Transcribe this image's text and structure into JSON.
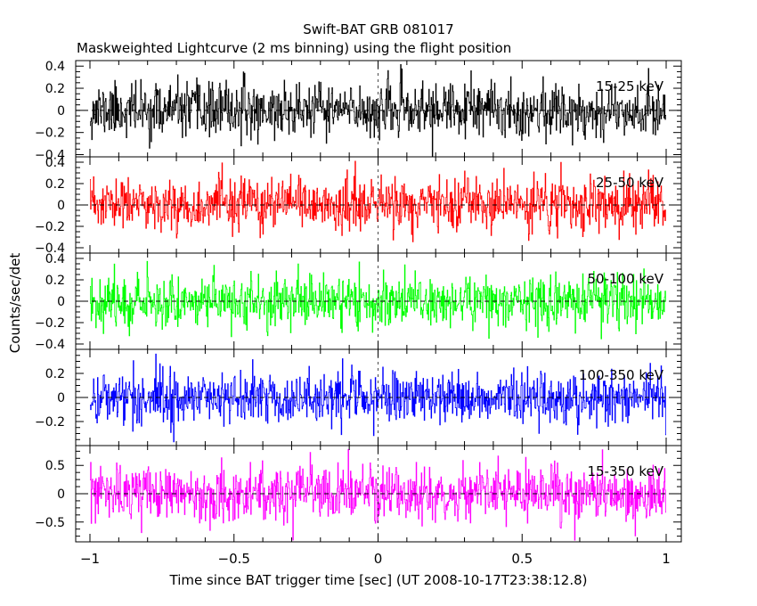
{
  "chart_data": {
    "type": "line",
    "title": "Swift-BAT GRB 081017",
    "subtitle": "Maskweighted Lightcurve (2 ms binning) using the flight position",
    "xlabel": "Time since BAT trigger time [sec] (UT 2008-10-17T23:38:12.8)",
    "ylabel": "Counts/sec/det",
    "xlim": [
      -1.0,
      1.0
    ],
    "x_ticks": [
      -1,
      -0.5,
      0,
      0.5,
      1
    ],
    "x_tick_labels": [
      "−1",
      "−0.5",
      "0",
      "0.5",
      "1"
    ],
    "bin_width_sec": 0.002,
    "panels": [
      {
        "name": "15-25 keV",
        "color": "#000000",
        "ylim": [
          -0.42,
          0.45
        ],
        "y_ticks": [
          -0.4,
          -0.2,
          0,
          0.2,
          0.4
        ],
        "y_tick_labels": [
          "−0.4",
          "−0.2",
          "0",
          "0.2",
          "0.4"
        ],
        "noise_sigma": 0.12,
        "seed": 11
      },
      {
        "name": "25-50 keV",
        "color": "#ff0000",
        "ylim": [
          -0.45,
          0.45
        ],
        "y_ticks": [
          -0.4,
          -0.2,
          0,
          0.2,
          0.4
        ],
        "y_tick_labels": [
          "−0.4",
          "−0.2",
          "0",
          "0.2",
          "0.4"
        ],
        "noise_sigma": 0.12,
        "seed": 23
      },
      {
        "name": "50-100 keV",
        "color": "#00ff00",
        "ylim": [
          -0.45,
          0.45
        ],
        "y_ticks": [
          -0.4,
          -0.2,
          0,
          0.2,
          0.4
        ],
        "y_tick_labels": [
          "−0.4",
          "−0.2",
          "0",
          "0.2",
          "0.4"
        ],
        "noise_sigma": 0.12,
        "seed": 37
      },
      {
        "name": "100-350 keV",
        "color": "#0000ff",
        "ylim": [
          -0.4,
          0.4
        ],
        "y_ticks": [
          -0.2,
          0,
          0.2
        ],
        "y_tick_labels": [
          "−0.2",
          "0",
          "0.2"
        ],
        "noise_sigma": 0.11,
        "seed": 41
      },
      {
        "name": "15-350 keV",
        "color": "#ff00ff",
        "ylim": [
          -0.85,
          0.85
        ],
        "y_ticks": [
          -0.5,
          0,
          0.5
        ],
        "y_tick_labels": [
          "−0.5",
          "0",
          "0.5"
        ],
        "noise_sigma": 0.24,
        "seed": 53
      }
    ]
  }
}
